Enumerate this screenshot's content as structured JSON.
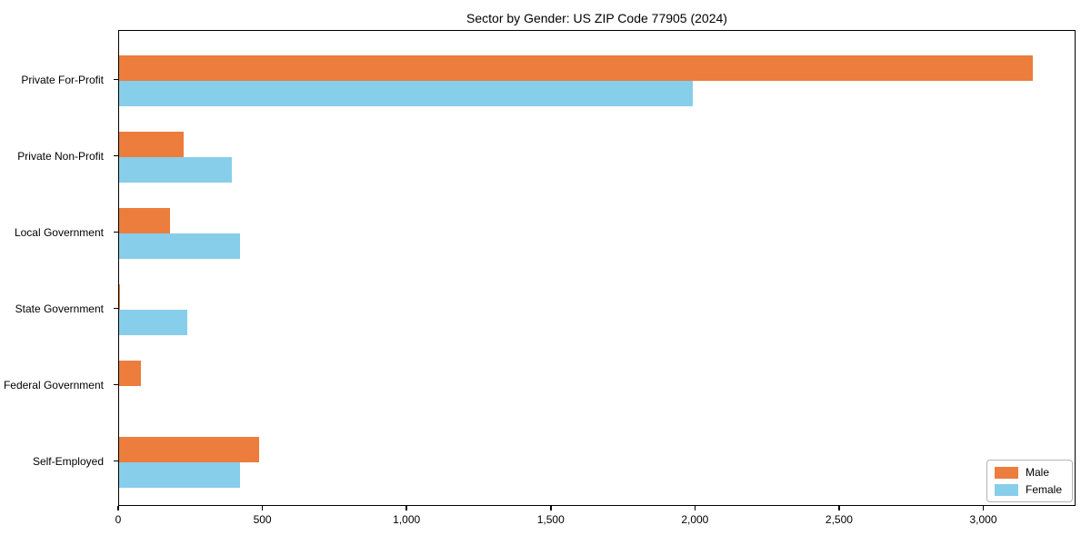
{
  "chart_data": {
    "type": "bar",
    "orientation": "horizontal",
    "title": "Sector by Gender: US ZIP Code 77905 (2024)",
    "categories": [
      "Private For-Profit",
      "Private Non-Profit",
      "Local Government",
      "State Government",
      "Federal Government",
      "Self-Employed"
    ],
    "series": [
      {
        "name": "Male",
        "color": "#ec7d3c",
        "values": [
          3170,
          225,
          175,
          4,
          75,
          485
        ]
      },
      {
        "name": "Female",
        "color": "#87ceeb",
        "values": [
          1990,
          390,
          420,
          235,
          0,
          420
        ]
      }
    ],
    "xlabel": "",
    "ylabel": "",
    "xlim": [
      0,
      3320
    ],
    "x_ticks": [
      0,
      500,
      1000,
      1500,
      2000,
      2500,
      3000
    ],
    "x_tick_labels": [
      "0",
      "500",
      "1,000",
      "1,500",
      "2,000",
      "2,500",
      "3,000"
    ],
    "grid": false,
    "legend": {
      "position": "lower right",
      "entries": [
        "Male",
        "Female"
      ]
    },
    "colors": {
      "male": "#ec7d3c",
      "female": "#87ceeb",
      "axis": "#000000",
      "legend_border": "#b3b3b3"
    }
  }
}
